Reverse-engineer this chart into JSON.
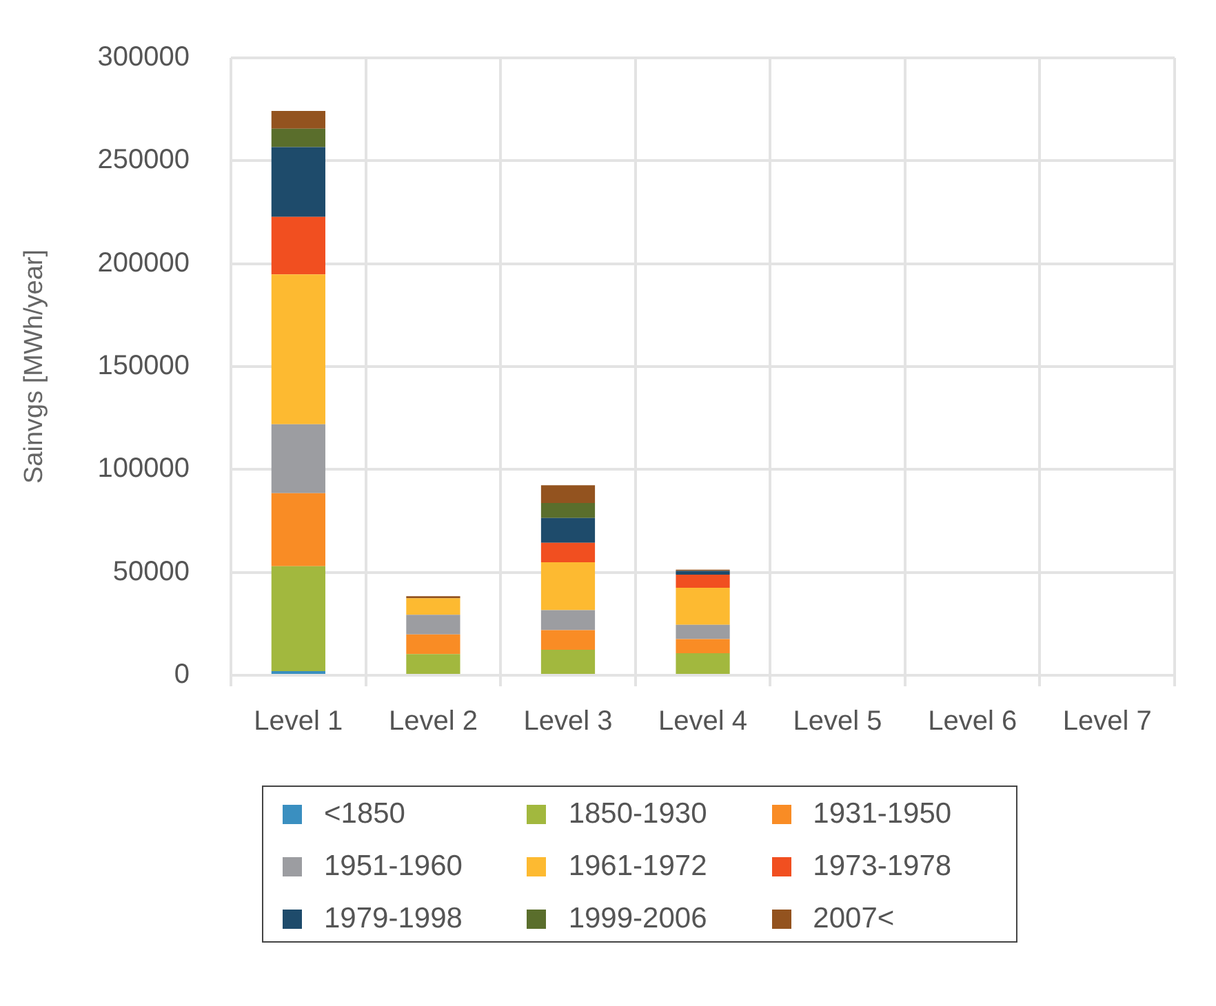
{
  "chart_data": {
    "type": "bar",
    "stacked": true,
    "ylabel": "Sainvgs [MWh/year]",
    "categories": [
      "Level 1",
      "Level 2",
      "Level 3",
      "Level 4",
      "Level 5",
      "Level 6",
      "Level 7"
    ],
    "series": [
      {
        "name": "<1850",
        "color": "#3a8fc0",
        "values": [
          2000,
          0,
          0,
          0,
          0,
          0,
          0
        ]
      },
      {
        "name": "1850-1930",
        "color": "#a2b83e",
        "values": [
          51000,
          10300,
          12400,
          10700,
          0,
          0,
          0
        ]
      },
      {
        "name": "1931-1950",
        "color": "#f98c25",
        "values": [
          35500,
          9500,
          9500,
          6900,
          0,
          0,
          0
        ]
      },
      {
        "name": "1951-1960",
        "color": "#9c9da1",
        "values": [
          33500,
          9600,
          9700,
          6900,
          0,
          0,
          0
        ]
      },
      {
        "name": "1961-1972",
        "color": "#fdba31",
        "values": [
          72800,
          8000,
          23300,
          18000,
          0,
          0,
          0
        ]
      },
      {
        "name": "1973-1978",
        "color": "#f14f20",
        "values": [
          27900,
          0,
          9500,
          6400,
          0,
          0,
          0
        ]
      },
      {
        "name": "1979-1998",
        "color": "#1e4b6b",
        "values": [
          33900,
          0,
          12000,
          1800,
          0,
          0,
          0
        ]
      },
      {
        "name": "1999-2006",
        "color": "#5a6e2c",
        "values": [
          9000,
          0,
          7300,
          0,
          0,
          0,
          0
        ]
      },
      {
        "name": "2007<",
        "color": "#93531f",
        "values": [
          8600,
          1000,
          8600,
          600,
          0,
          0,
          0
        ]
      }
    ],
    "ylim": [
      0,
      300000
    ],
    "yticks": [
      0,
      50000,
      100000,
      150000,
      200000,
      250000,
      300000
    ],
    "grid": true,
    "legend": "bottom"
  }
}
